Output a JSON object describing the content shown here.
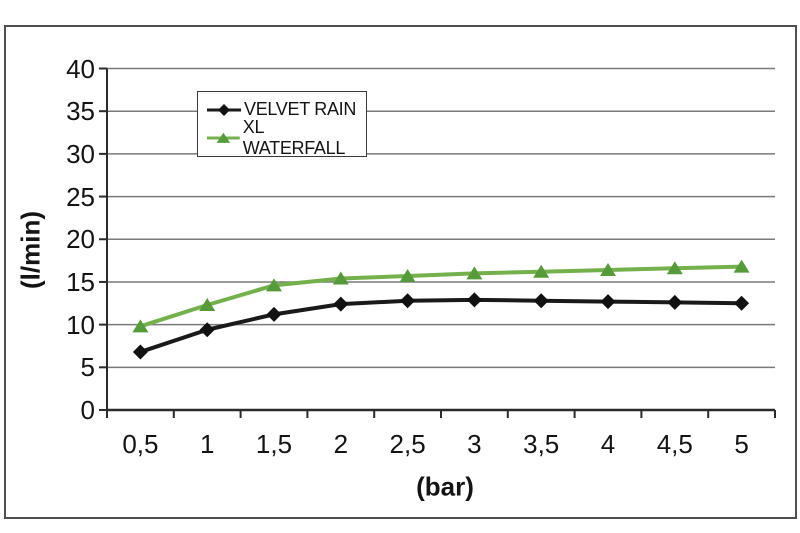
{
  "figure": {
    "background": "#ffffff",
    "frame_border_color": "#4f4f4f"
  },
  "chart_data": {
    "type": "line",
    "title": "",
    "xlabel": "(bar)",
    "ylabel": "(l/min)",
    "categories": [
      "0,5",
      "1",
      "1,5",
      "2",
      "2,5",
      "3",
      "3,5",
      "4",
      "4,5",
      "5"
    ],
    "series": [
      {
        "name": "VELVET RAIN",
        "color": "#1a1a1a",
        "marker": "diamond",
        "marker_color": "#111111",
        "values": [
          6.8,
          9.4,
          11.2,
          12.4,
          12.8,
          12.9,
          12.8,
          12.7,
          12.6,
          12.5
        ]
      },
      {
        "name": "XL WATERFALL",
        "color": "#74b14d",
        "marker": "triangle",
        "marker_color": "#569a3a",
        "values": [
          9.8,
          12.3,
          14.6,
          15.4,
          15.7,
          16.0,
          16.2,
          16.4,
          16.6,
          16.8
        ]
      }
    ],
    "ylim": [
      0,
      40
    ],
    "ytick_step": 5,
    "ytick_labels": [
      "0",
      "5",
      "10",
      "15",
      "20",
      "25",
      "30",
      "35",
      "40"
    ],
    "grid": "horizontal",
    "gridline_color": "#7a7a7a",
    "axis_color": "#2b2b2b",
    "legend_position": "top-left-inside"
  }
}
